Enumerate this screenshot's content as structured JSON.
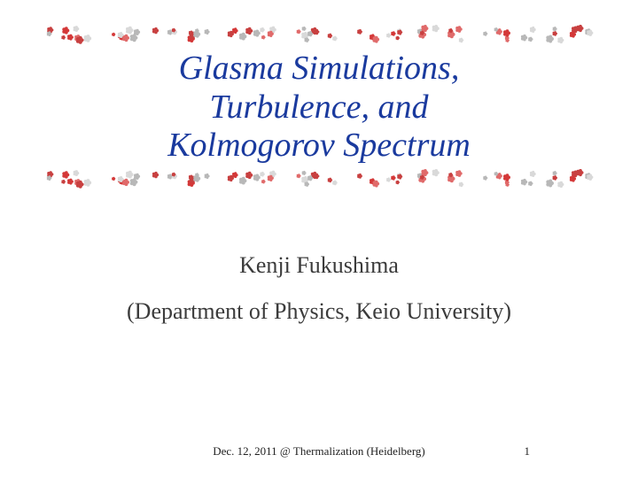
{
  "title": {
    "text": "Glasma Simulations,\nTurbulence, and\nKolmogorov Spectrum",
    "color": "#1a3a9e",
    "fontsize": 38
  },
  "author": {
    "text": "Kenji Fukushima",
    "color": "#3b3b3b",
    "fontsize": 26
  },
  "affiliation": {
    "text": "(Department of Physics, Keio University)",
    "color": "#3b3b3b",
    "fontsize": 26
  },
  "footer": {
    "text": "Dec. 12, 2011 @ Thermalization (Heidelberg)",
    "color": "#222222",
    "fontsize": 13
  },
  "page": {
    "text": "1",
    "color": "#222222",
    "fontsize": 13
  },
  "border": {
    "colors": [
      "#d43838",
      "#e06a6a",
      "#b8b8b8",
      "#d9d9d9",
      "#c84040"
    ],
    "cluster_count": 9,
    "flowers_per_cluster": 9
  }
}
